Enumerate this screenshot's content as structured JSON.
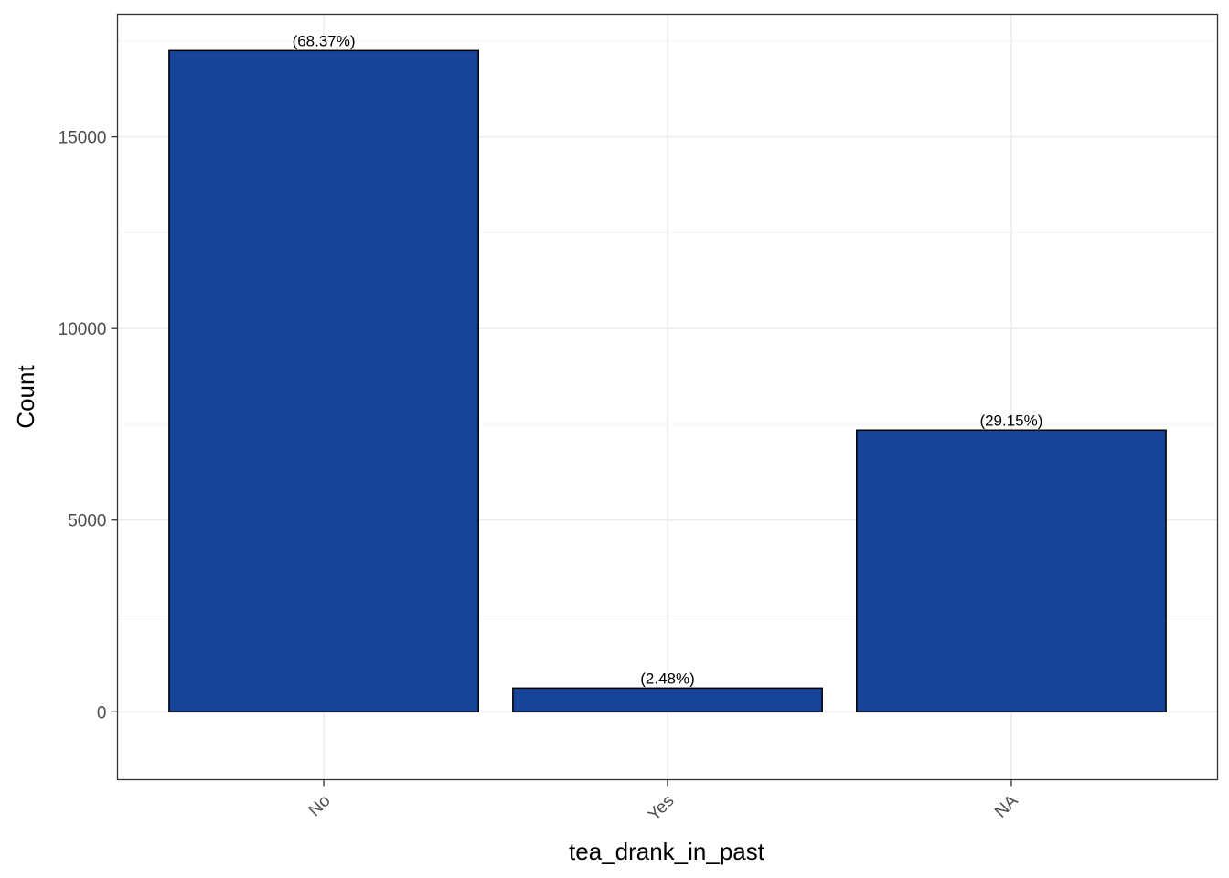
{
  "chart_data": {
    "type": "bar",
    "categories": [
      "No",
      "Yes",
      "NA"
    ],
    "values": [
      17250,
      620,
      7350
    ],
    "data_labels": [
      "(68.37%)",
      "(2.48%)",
      "(29.15%)"
    ],
    "xlabel": "tea_drank_in_past",
    "ylabel": "Count",
    "ylim": [
      -1770,
      18200
    ],
    "yticks": [
      0,
      5000,
      10000,
      15000
    ],
    "ytick_labels": [
      "0",
      "5000",
      "10000",
      "15000"
    ],
    "grid": true,
    "legend": "none",
    "colors": {
      "bar_fill": "#174499",
      "bar_stroke": "#000000",
      "grid_major": "#ebebeb",
      "grid_minor": "#f5f5f5",
      "panel_border": "#333333",
      "tick_text": "#4d4d4d"
    }
  }
}
